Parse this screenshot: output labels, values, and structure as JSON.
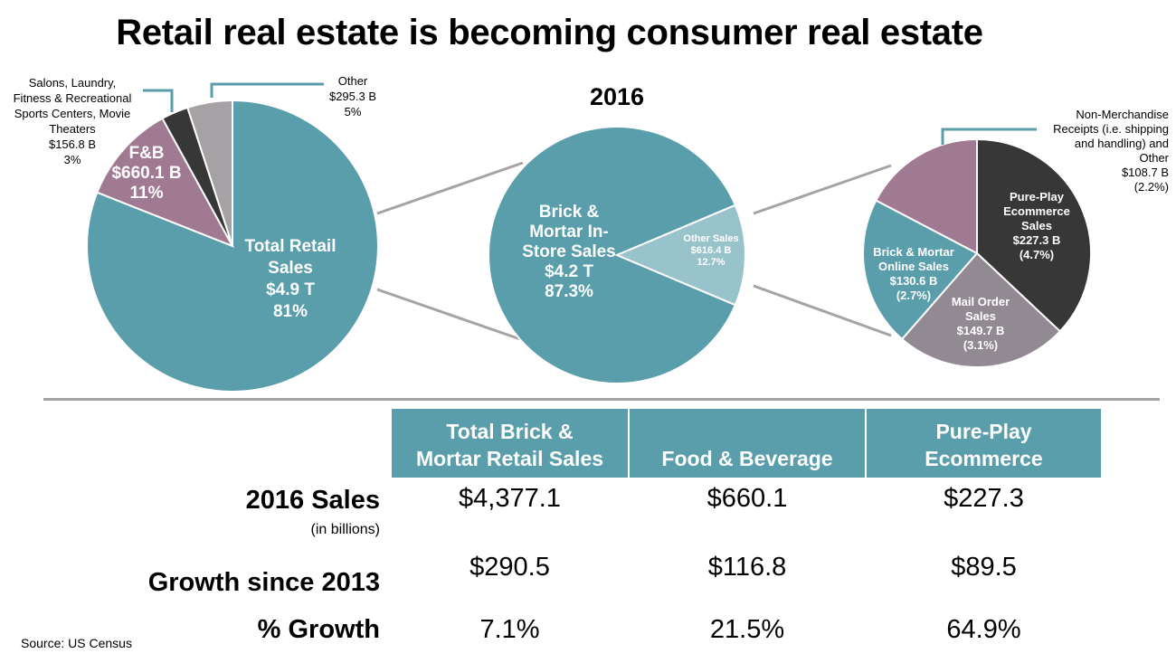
{
  "title": "Retail real estate is becoming consumer real estate",
  "colors": {
    "teal": "#5b9eab",
    "mauve": "#a07a92",
    "dark": "#363736",
    "grey": "#a6a1a4",
    "light_teal": "#99c3cb",
    "mid_grey": "#928a92",
    "connector": "#a7a3a4"
  },
  "chart_data": [
    {
      "type": "pie",
      "name": "total-retail",
      "slices": [
        {
          "label": [
            "Total Retail",
            "Sales",
            "$4.9 T",
            "81%"
          ],
          "value": 81,
          "color": "#5b9eab"
        },
        {
          "label": [
            "F&B",
            "$660.1 B",
            "11%"
          ],
          "value": 11,
          "color": "#a07a92"
        },
        {
          "label": [
            "Salons, Laundry,",
            "Fitness & Recreational",
            "Sports Centers, Movie",
            "Theaters",
            "$156.8 B",
            "3%"
          ],
          "value": 3,
          "color": "#363736"
        },
        {
          "label": [
            "Other",
            "$295.3 B",
            "5%"
          ],
          "value": 5,
          "color": "#a6a1a4"
        }
      ]
    },
    {
      "type": "pie",
      "name": "retail-breakdown",
      "title": "2016",
      "slices": [
        {
          "label": [
            "Brick &",
            "Mortar In-",
            "Store Sales",
            "$4.2 T",
            "87.3%"
          ],
          "value": 87.3,
          "color": "#5b9eab"
        },
        {
          "label": [
            "Other Sales",
            "$616.4 B",
            "12.7%"
          ],
          "value": 12.7,
          "color": "#99c3cb"
        }
      ]
    },
    {
      "type": "pie",
      "name": "other-sales-breakdown",
      "slices": [
        {
          "label": [
            "Pure-Play",
            "Ecommerce",
            "Sales",
            "$227.3 B",
            "(4.7%)"
          ],
          "value": 4.7,
          "color": "#363736"
        },
        {
          "label": [
            "Mail Order",
            "Sales",
            "$149.7 B",
            "(3.1%)"
          ],
          "value": 3.1,
          "color": "#928a92"
        },
        {
          "label": [
            "Brick & Mortar",
            "Online Sales",
            "$130.6 B",
            "(2.7%)"
          ],
          "value": 2.7,
          "color": "#5b9eab"
        },
        {
          "label": [
            "Non-Merchandise",
            "Receipts (i.e. shipping",
            "and handling) and",
            "Other",
            "$108.7 B",
            "(2.2%)"
          ],
          "value": 2.2,
          "color": "#a07a92"
        }
      ]
    },
    {
      "type": "table",
      "name": "sales-table",
      "columns": [
        "Total Brick & Mortar Retail Sales",
        "Food & Beverage",
        "Pure-Play Ecommerce"
      ],
      "column_lines": [
        [
          "Total Brick &",
          "Mortar Retail Sales"
        ],
        [
          "Food & Beverage"
        ],
        [
          "Pure-Play",
          "Ecommerce"
        ]
      ],
      "rows": [
        {
          "label": "2016 Sales",
          "sublabel": "(in billions)",
          "values": [
            "$4,377.1",
            "$660.1",
            "$227.3"
          ]
        },
        {
          "label": "Growth since 2013",
          "values": [
            "$290.5",
            "$116.8",
            "$89.5"
          ]
        },
        {
          "label": "% Growth",
          "values": [
            "7.1%",
            "21.5%",
            "64.9%"
          ]
        }
      ]
    }
  ],
  "source": "Source: US Census"
}
